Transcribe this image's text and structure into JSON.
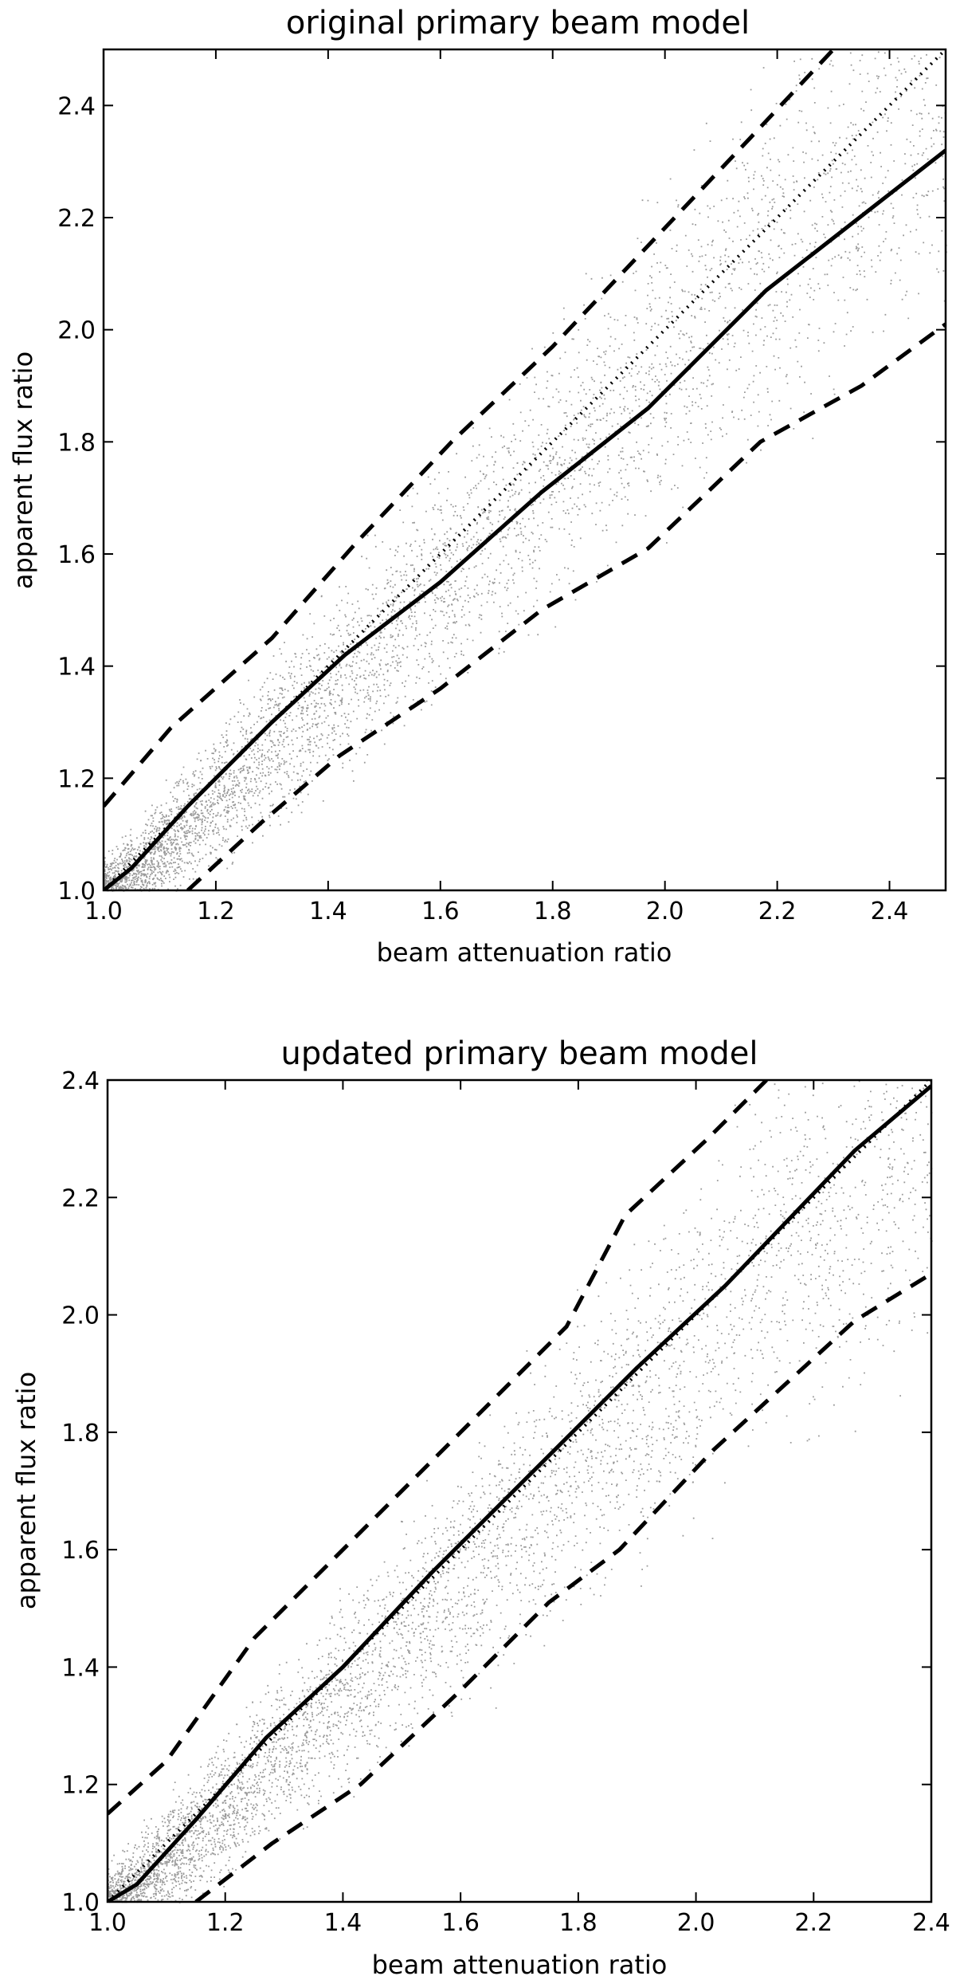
{
  "chart_data": [
    {
      "type": "scatter",
      "title": "original primary beam model",
      "xlabel": "beam attenuation ratio",
      "ylabel": "apparent flux ratio",
      "xlim": [
        1.0,
        2.5
      ],
      "ylim": [
        1.0,
        2.5
      ],
      "xticks": [
        "1.0",
        "1.2",
        "1.4",
        "1.6",
        "1.8",
        "2.0",
        "2.2",
        "2.4"
      ],
      "yticks": [
        "1.0",
        "1.2",
        "1.4",
        "1.6",
        "1.8",
        "2.0",
        "2.2",
        "2.4"
      ],
      "grid": false,
      "scatter_color": "#9a9a9a",
      "scatter_description": "several thousand small grey points, densest near (1.0–1.5, 1.0–1.6), spreading wider at larger x",
      "series": [
        {
          "style": "solid",
          "x": [
            1.0,
            1.05,
            1.15,
            1.3,
            1.43,
            1.6,
            1.78,
            1.97,
            2.18,
            2.5
          ],
          "y": [
            1.0,
            1.04,
            1.15,
            1.3,
            1.42,
            1.55,
            1.71,
            1.86,
            2.07,
            2.32
          ]
        },
        {
          "style": "dotted",
          "x": [
            1.0,
            2.5
          ],
          "y": [
            1.0,
            2.5
          ]
        },
        {
          "style": "dashed",
          "x": [
            1.0,
            1.12,
            1.3,
            1.45,
            1.62,
            1.8,
            1.97,
            2.15,
            2.3
          ],
          "y": [
            1.15,
            1.29,
            1.45,
            1.62,
            1.8,
            1.97,
            2.15,
            2.34,
            2.5
          ]
        },
        {
          "style": "dashed",
          "x": [
            1.15,
            1.28,
            1.42,
            1.6,
            1.78,
            1.97,
            2.17,
            2.35,
            2.5
          ],
          "y": [
            1.0,
            1.12,
            1.24,
            1.36,
            1.5,
            1.61,
            1.8,
            1.9,
            2.01
          ]
        }
      ]
    },
    {
      "type": "scatter",
      "title": "updated primary beam model",
      "xlabel": "beam attenuation ratio",
      "ylabel": "apparent flux ratio",
      "xlim": [
        1.0,
        2.4
      ],
      "ylim": [
        1.0,
        2.4
      ],
      "xticks": [
        "1.0",
        "1.2",
        "1.4",
        "1.6",
        "1.8",
        "2.0",
        "2.2",
        "2.4"
      ],
      "yticks": [
        "1.0",
        "1.2",
        "1.4",
        "1.6",
        "1.8",
        "2.0",
        "2.2",
        "2.4"
      ],
      "grid": false,
      "scatter_color": "#9a9a9a",
      "scatter_description": "several thousand small grey points, densest near (1.0–1.6, 1.0–1.7), spreading wider at larger x",
      "series": [
        {
          "style": "solid",
          "x": [
            1.0,
            1.05,
            1.15,
            1.27,
            1.4,
            1.55,
            1.75,
            1.9,
            2.05,
            2.27,
            2.4
          ],
          "y": [
            1.0,
            1.03,
            1.14,
            1.28,
            1.4,
            1.56,
            1.76,
            1.91,
            2.05,
            2.28,
            2.39
          ]
        },
        {
          "style": "dotted",
          "x": [
            1.0,
            2.4
          ],
          "y": [
            1.0,
            2.4
          ]
        },
        {
          "style": "dashed",
          "x": [
            1.0,
            1.1,
            1.25,
            1.42,
            1.6,
            1.78,
            1.88,
            2.02,
            2.12
          ],
          "y": [
            1.15,
            1.24,
            1.45,
            1.62,
            1.8,
            1.98,
            2.17,
            2.3,
            2.4
          ]
        },
        {
          "style": "dashed",
          "x": [
            1.15,
            1.28,
            1.43,
            1.6,
            1.75,
            1.87,
            2.03,
            2.15,
            2.27,
            2.4
          ],
          "y": [
            1.0,
            1.1,
            1.2,
            1.36,
            1.51,
            1.6,
            1.77,
            1.88,
            1.99,
            2.07
          ]
        }
      ]
    }
  ]
}
